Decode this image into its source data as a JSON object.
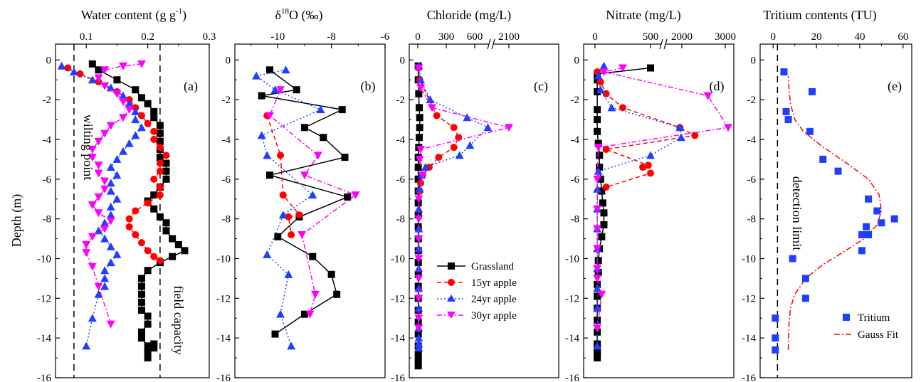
{
  "figure": {
    "ylabel": "Depth (m)",
    "depth_ticks": [
      "0",
      "-2",
      "-4",
      "-6",
      "-8",
      "-10",
      "-12",
      "-14",
      "-16"
    ],
    "legend": {
      "grassland": "Grassland",
      "apple15": "15yr apple",
      "apple24": "24yr apple",
      "apple30": "30yr apple"
    },
    "series_colors": {
      "grassland": "#000000",
      "apple15": "#ff0000",
      "apple24": "#1f3fff",
      "apple30": "#ff00ff"
    }
  },
  "panels": {
    "a": {
      "title_main": "Water content (g g",
      "title_sup": "-1",
      "title_end": ")",
      "label": "(a)",
      "xticks": [
        "0.1",
        "0.2",
        "0.3"
      ],
      "annotation_left": "wilting point",
      "annotation_right": "field capacity"
    },
    "b": {
      "title_delta": "δ",
      "title_sup": "18",
      "title_rest": "O (‰)",
      "label": "(b)",
      "xticks": [
        "-10",
        "-8",
        "-6"
      ]
    },
    "c": {
      "title": "Chloride (mg/L)",
      "label": "(c)",
      "xticks": [
        "0",
        "300",
        "600",
        "2100"
      ]
    },
    "d": {
      "title": "Nitrate (mg/L)",
      "label": "(d)",
      "xticks": [
        "0",
        "500",
        "2000",
        "3000"
      ]
    },
    "e": {
      "title": "Tritium contents (TU)",
      "label": "(e)",
      "xticks": [
        "0",
        "20",
        "40",
        "60"
      ],
      "annotation": "detection limit",
      "legend_points": "Tritium",
      "legend_fit": "Gauss Fit"
    }
  },
  "chart_data": [
    {
      "type": "line",
      "panel": "a",
      "title": "Water content (g g-1)",
      "ylabel": "Depth (m)",
      "xlim": [
        0.05,
        0.3
      ],
      "ylim": [
        -16,
        0.8
      ],
      "reference_lines": {
        "wilting point": 0.08,
        "field capacity": 0.22
      },
      "series": [
        {
          "name": "Grassland",
          "x": [
            0.11,
            0.12,
            0.15,
            0.18,
            0.19,
            0.2,
            0.21,
            0.21,
            0.22,
            0.22,
            0.22,
            0.22,
            0.22,
            0.23,
            0.23,
            0.23,
            0.22,
            0.21,
            0.2,
            0.21,
            0.22,
            0.23,
            0.23,
            0.24,
            0.25,
            0.26,
            0.24,
            0.22,
            0.2,
            0.19,
            0.19,
            0.19,
            0.19,
            0.19,
            0.2,
            0.2,
            0.19,
            0.19,
            0.2,
            0.2,
            0.21,
            0.21,
            0.2
          ],
          "y": [
            -0.2,
            -0.5,
            -1.0,
            -1.5,
            -1.9,
            -2.2,
            -2.6,
            -2.9,
            -3.3,
            -3.7,
            -4.1,
            -4.5,
            -4.9,
            -5.2,
            -5.6,
            -6.0,
            -6.4,
            -6.8,
            -7.1,
            -7.5,
            -7.9,
            -8.2,
            -8.6,
            -9.0,
            -9.3,
            -9.6,
            -9.9,
            -10.2,
            -10.6,
            -11.0,
            -11.4,
            -11.8,
            -12.2,
            -12.6,
            -12.9,
            -13.3,
            -13.7,
            -14.0,
            -14.4,
            -14.7,
            -14.5,
            -14.3,
            -15.0
          ]
        },
        {
          "name": "15yr apple",
          "x": [
            0.07,
            0.09,
            0.12,
            0.15,
            0.17,
            0.18,
            0.19,
            0.2,
            0.21,
            0.21,
            0.22,
            0.23,
            0.22,
            0.22,
            0.21,
            0.22,
            0.22,
            0.2,
            0.18,
            0.17,
            0.17,
            0.18,
            0.19,
            0.2,
            0.21,
            0.22
          ],
          "y": [
            -0.4,
            -0.7,
            -1.1,
            -1.6,
            -2.0,
            -2.4,
            -2.8,
            -3.2,
            -3.6,
            -4.0,
            -4.4,
            -4.8,
            -5.2,
            -5.6,
            -6.0,
            -6.4,
            -6.8,
            -7.2,
            -7.6,
            -8.0,
            -8.4,
            -8.8,
            -9.2,
            -9.6,
            -9.9,
            -10.1
          ]
        },
        {
          "name": "24yr apple",
          "x": [
            0.06,
            0.08,
            0.11,
            0.14,
            0.16,
            0.17,
            0.18,
            0.18,
            0.19,
            0.18,
            0.17,
            0.16,
            0.15,
            0.14,
            0.15,
            0.14,
            0.14,
            0.15,
            0.14,
            0.14,
            0.13,
            0.12,
            0.13,
            0.14,
            0.15,
            0.14,
            0.13,
            0.13,
            0.13,
            0.12,
            0.11,
            0.1
          ],
          "y": [
            -0.3,
            -0.6,
            -1.0,
            -1.4,
            -1.8,
            -2.2,
            -2.6,
            -3.0,
            -3.4,
            -3.8,
            -4.2,
            -4.6,
            -5.0,
            -5.4,
            -5.8,
            -6.2,
            -6.6,
            -7.0,
            -7.4,
            -7.8,
            -8.2,
            -8.6,
            -9.0,
            -9.4,
            -9.8,
            -10.2,
            -10.6,
            -11.0,
            -11.4,
            -11.8,
            -13.0,
            -14.4
          ]
        },
        {
          "name": "30yr apple",
          "x": [
            0.19,
            0.16,
            0.13,
            0.12,
            0.13,
            0.15,
            0.16,
            0.17,
            0.16,
            0.14,
            0.13,
            0.12,
            0.11,
            0.11,
            0.12,
            0.12,
            0.13,
            0.13,
            0.12,
            0.11,
            0.12,
            0.14,
            0.13,
            0.11,
            0.1,
            0.1,
            0.11,
            0.12,
            0.14
          ],
          "y": [
            -0.2,
            -0.3,
            -0.5,
            -0.9,
            -1.3,
            -1.7,
            -2.1,
            -2.5,
            -2.9,
            -3.3,
            -3.7,
            -4.1,
            -4.5,
            -4.9,
            -5.3,
            -5.7,
            -6.1,
            -6.5,
            -6.9,
            -7.3,
            -7.7,
            -8.1,
            -8.5,
            -8.9,
            -9.3,
            -9.7,
            -10.4,
            -11.4,
            -13.3
          ]
        }
      ]
    },
    {
      "type": "line",
      "panel": "b",
      "title": "δ18O (‰)",
      "ylabel": "Depth (m)",
      "xlim": [
        -11.6,
        -6
      ],
      "ylim": [
        -16,
        0.8
      ],
      "series": [
        {
          "name": "Grassland",
          "x": [
            -10.3,
            -9.3,
            -10.6,
            -7.6,
            -9.0,
            -8.3,
            -7.5,
            -10.3,
            -7.4,
            -9.2,
            -10.0,
            -8.7,
            -8.0,
            -7.8,
            -9.0,
            -10.1
          ],
          "y": [
            -0.5,
            -1.5,
            -1.8,
            -2.5,
            -3.4,
            -3.9,
            -4.9,
            -5.8,
            -6.9,
            -7.9,
            -8.9,
            -9.9,
            -10.8,
            -11.8,
            -12.8,
            -13.8
          ]
        },
        {
          "name": "15yr apple",
          "x": [
            -10.4,
            -9.9,
            -9.8,
            -9.2,
            -9.6,
            -9.5
          ],
          "y": [
            -2.8,
            -4.8,
            -6.8,
            -7.8,
            -7.9,
            -8.8
          ]
        },
        {
          "name": "24yr apple",
          "x": [
            -9.7,
            -10.8,
            -10.1,
            -8.4,
            -10.6,
            -10.4,
            -8.7,
            -9.8,
            -10.4,
            -9.6,
            -9.9,
            -9.5
          ],
          "y": [
            -0.5,
            -0.8,
            -1.5,
            -2.5,
            -3.8,
            -4.8,
            -6.8,
            -7.8,
            -9.8,
            -10.8,
            -12.8,
            -14.4
          ]
        },
        {
          "name": "30yr apple",
          "x": [
            -9.9,
            -10.3,
            -8.5,
            -9.0,
            -7.1,
            -9.1,
            -8.6,
            -8.8
          ],
          "y": [
            -1.5,
            -2.8,
            -4.8,
            -5.8,
            -6.8,
            -8.8,
            -11.8,
            -12.8
          ]
        }
      ]
    },
    {
      "type": "line",
      "panel": "c",
      "title": "Chloride (mg/L)",
      "ylabel": "Depth (m)",
      "x_axis_break": "between 600 and 2100",
      "ylim": [
        -16,
        0.8
      ],
      "series": [
        {
          "name": "Grassland",
          "x": [
            5,
            5,
            10,
            15,
            20,
            20,
            15,
            10,
            5,
            5,
            5,
            5,
            5,
            5,
            5,
            5,
            5,
            5,
            5,
            5,
            5,
            5,
            5,
            5,
            5,
            5,
            5,
            5,
            5
          ],
          "y": [
            -0.3,
            -1.0,
            -1.7,
            -2.4,
            -2.9,
            -3.4,
            -3.9,
            -4.4,
            -4.9,
            -5.4,
            -6.0,
            -6.6,
            -7.2,
            -7.8,
            -8.4,
            -9.0,
            -9.6,
            -10.2,
            -10.8,
            -11.4,
            -12.0,
            -12.6,
            -13.2,
            -13.8,
            -14.4,
            -14.8,
            -15.0,
            -15.2,
            -15.4
          ]
        },
        {
          "name": "15yr apple",
          "x": [
            10,
            20,
            200,
            380,
            430,
            380,
            220,
            120,
            50,
            30,
            20
          ],
          "y": [
            -0.4,
            -1.0,
            -2.8,
            -3.4,
            -3.9,
            -4.4,
            -4.9,
            -5.4,
            -5.8,
            -6.2,
            -6.6
          ]
        },
        {
          "name": "24yr apple",
          "x": [
            10,
            30,
            130,
            520,
            680,
            550,
            440,
            80,
            40,
            20,
            10,
            10,
            10,
            10,
            10,
            10,
            10,
            10,
            10,
            10
          ],
          "y": [
            -0.3,
            -1.0,
            -2.0,
            -2.9,
            -3.4,
            -4.3,
            -4.8,
            -5.4,
            -5.8,
            -6.5,
            -7.5,
            -8.5,
            -9.5,
            -10.5,
            -11.5,
            -12.5,
            -13.5,
            -14.0,
            -14.3,
            -14.5
          ]
        },
        {
          "name": "30yr apple",
          "x": [
            10,
            30,
            150,
            2100,
            30,
            20,
            50,
            10,
            10,
            10,
            10,
            10,
            10,
            10,
            10
          ],
          "y": [
            -0.4,
            -1.4,
            -2.4,
            -3.4,
            -4.5,
            -5.0,
            -5.8,
            -7.0,
            -8.0,
            -9.0,
            -10.0,
            -11.0,
            -12.0,
            -13.0,
            -13.5
          ]
        }
      ]
    },
    {
      "type": "line",
      "panel": "d",
      "title": "Nitrate (mg/L)",
      "ylabel": "Depth (m)",
      "x_axis_break": "between 500 and 2000",
      "ylim": [
        -16,
        0.8
      ],
      "series": [
        {
          "name": "Grassland",
          "x": [
            500,
            20,
            20,
            20,
            20,
            20,
            20,
            30,
            40,
            40,
            50,
            60,
            70,
            80,
            80,
            60,
            40,
            30,
            30,
            20,
            20,
            20,
            20,
            20,
            20,
            20,
            20,
            20,
            20,
            20
          ],
          "y": [
            -0.4,
            -0.7,
            -1.0,
            -1.6,
            -2.5,
            -3.0,
            -3.6,
            -4.2,
            -4.8,
            -5.4,
            -6.0,
            -6.6,
            -7.2,
            -7.7,
            -8.3,
            -8.9,
            -9.5,
            -10.1,
            -10.7,
            -11.3,
            -11.9,
            -12.5,
            -13.1,
            -13.7,
            -14.3,
            -14.5,
            -14.7,
            -14.8,
            -14.9,
            -15.0
          ]
        },
        {
          "name": "15yr apple",
          "x": [
            20,
            50,
            100,
            250,
            1850,
            2300,
            100,
            480,
            430,
            500,
            100
          ],
          "y": [
            -0.6,
            -1.1,
            -1.7,
            -2.4,
            -3.4,
            -3.8,
            -4.5,
            -5.3,
            -5.4,
            -5.7,
            -6.4
          ]
        },
        {
          "name": "24yr apple",
          "x": [
            80,
            30,
            50,
            150,
            1850,
            1950,
            500,
            30,
            20,
            20,
            20,
            20,
            20,
            20,
            20,
            20
          ],
          "y": [
            -0.3,
            -0.8,
            -1.5,
            -2.4,
            -3.4,
            -3.9,
            -4.8,
            -5.6,
            -6.5,
            -7.5,
            -8.5,
            -9.5,
            -10.5,
            -11.5,
            -12.5,
            -14.4
          ]
        },
        {
          "name": "30yr apple",
          "x": [
            250,
            80,
            2600,
            3100,
            30,
            20,
            20,
            20,
            20,
            20,
            20,
            60,
            20
          ],
          "y": [
            -0.4,
            -0.6,
            -1.8,
            -3.4,
            -4.4,
            -6.0,
            -7.5,
            -8.5,
            -9.5,
            -10.5,
            -11.0,
            -11.8,
            -13.5
          ]
        }
      ]
    },
    {
      "type": "scatter",
      "panel": "e",
      "title": "Tritium contents (TU)",
      "ylabel": "Depth (m)",
      "xlim": [
        0,
        60
      ],
      "ylim": [
        -16,
        0.8
      ],
      "detection_limit": 2,
      "series": [
        {
          "name": "Tritium",
          "x": [
            5,
            18,
            6,
            7,
            17,
            23,
            30,
            44,
            48,
            56,
            50,
            43,
            44,
            41,
            41,
            9,
            15,
            15,
            1,
            1,
            1
          ],
          "y": [
            -0.6,
            -1.6,
            -2.6,
            -3.0,
            -3.6,
            -5.0,
            -5.6,
            -7.0,
            -7.6,
            -8.0,
            -8.2,
            -8.4,
            -8.8,
            -8.8,
            -9.6,
            -10.0,
            -11.0,
            -12.0,
            -13.0,
            -14.0,
            -14.6
          ]
        },
        {
          "name": "Gauss Fit",
          "x": [
            7,
            7.2,
            8,
            10,
            15,
            23,
            32,
            42,
            48,
            50,
            49,
            44,
            34,
            22,
            14,
            10,
            8,
            7.3,
            7
          ],
          "y": [
            -14.6,
            -13.5,
            -12.5,
            -11.8,
            -11.0,
            -10.3,
            -9.7,
            -9.0,
            -8.3,
            -7.6,
            -6.8,
            -6.0,
            -5.2,
            -4.3,
            -3.6,
            -3.0,
            -2.2,
            -1.4,
            -0.8
          ]
        }
      ]
    }
  ]
}
